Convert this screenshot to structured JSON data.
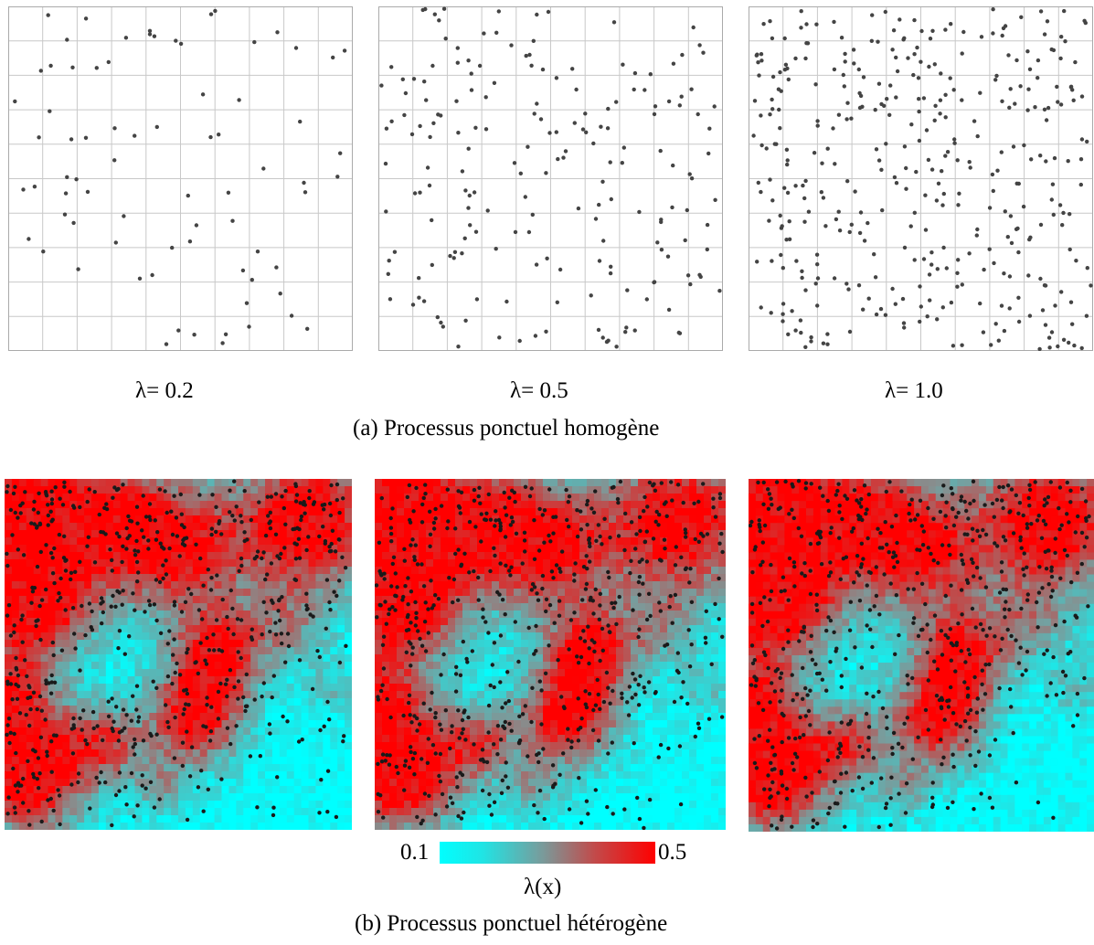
{
  "homogeneous": {
    "caption": "(a) Processus ponctuel homogène",
    "panels": [
      {
        "label": "λ= 0.2",
        "count": 75
      },
      {
        "label": "λ= 0.5",
        "count": 190
      },
      {
        "label": "λ= 1.0",
        "count": 380
      }
    ],
    "grid_lines_color": "#c8c8c8",
    "frame_color": "#aaaaaa",
    "dot_color": "#444444"
  },
  "heterogeneous": {
    "caption": "(b) Processus ponctuel hétérogène",
    "colorbar": {
      "min_label": "0.1",
      "max_label": "0.5",
      "label": "λ(x)",
      "low_color": "#00ffff",
      "high_color": "#ff0000"
    },
    "dot_color": "#1a1a1a",
    "panels": [
      {
        "id": "realisation-1"
      },
      {
        "id": "realisation-2"
      },
      {
        "id": "realisation-3"
      }
    ]
  }
}
